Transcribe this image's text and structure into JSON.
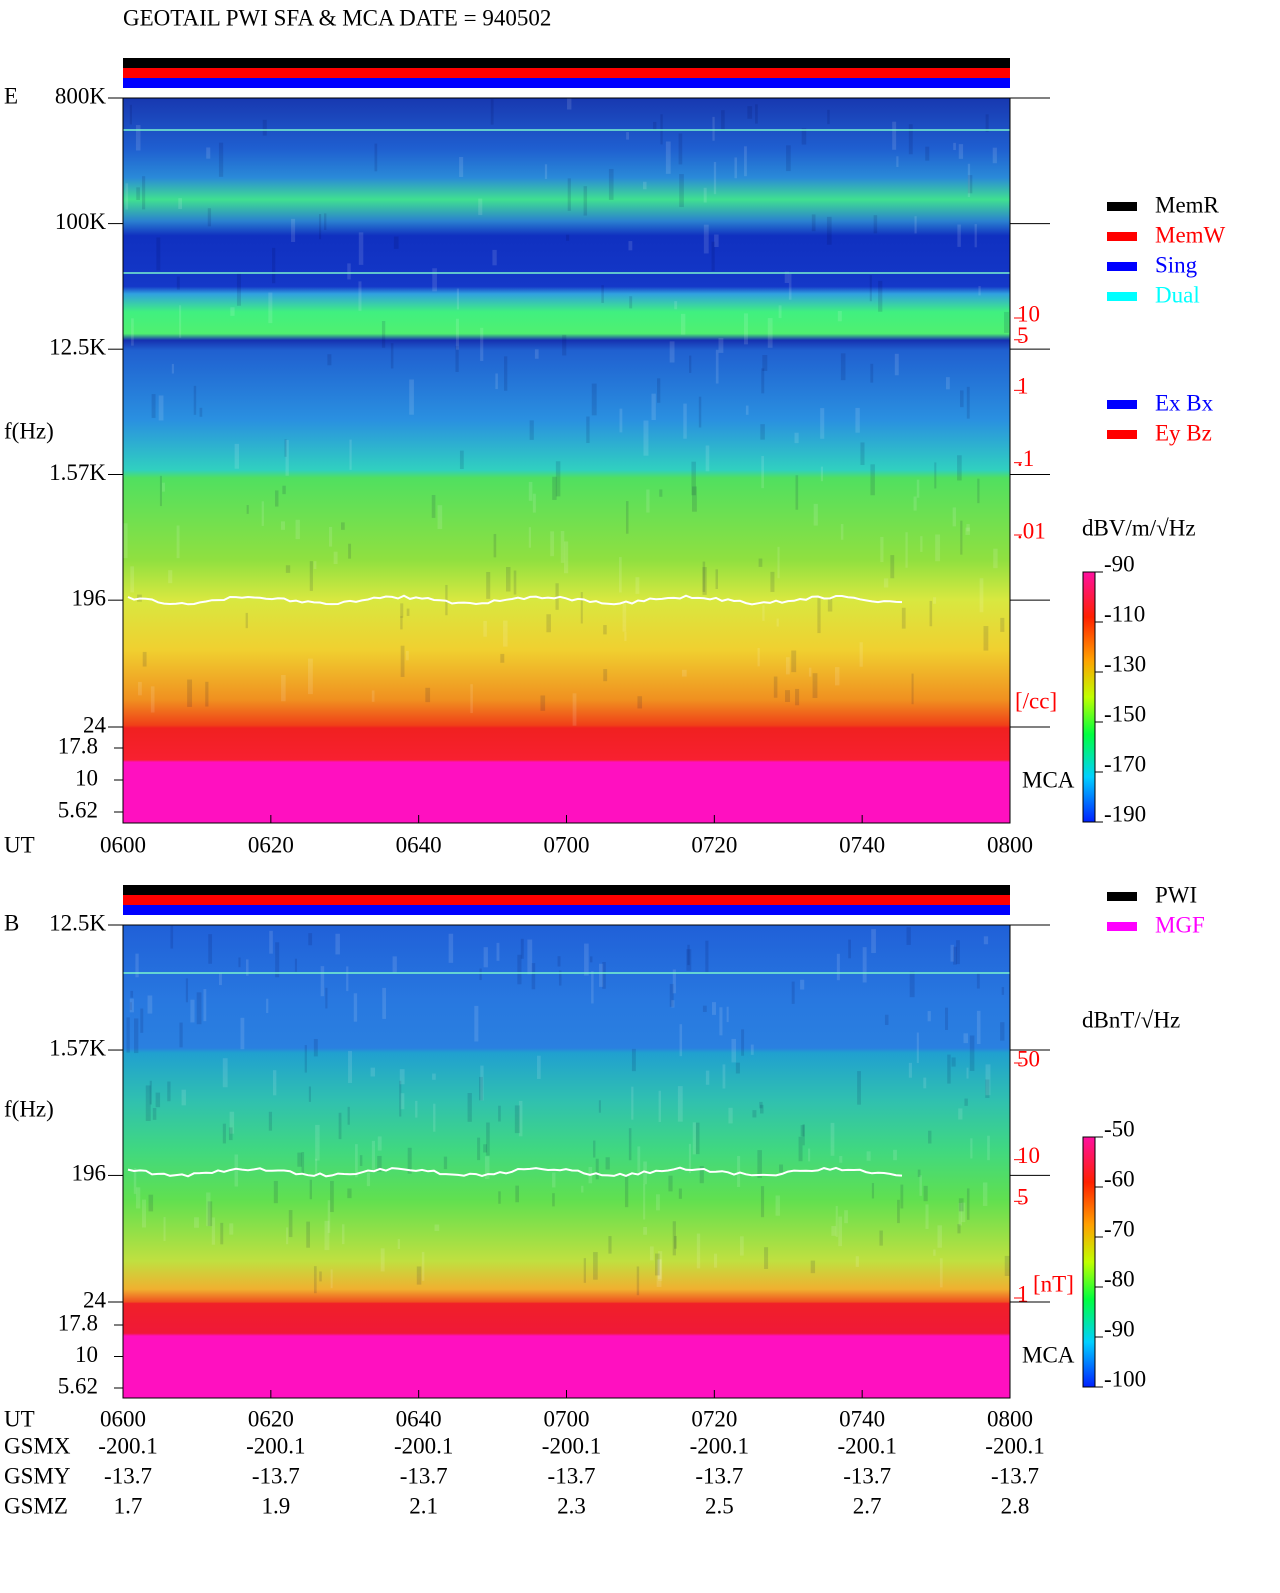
{
  "title": "GEOTAIL  PWI SFA & MCA   DATE = 940502",
  "chart_data": [
    {
      "type": "spectrogram",
      "panel_label": "E",
      "y_label": "f(Hz)",
      "x_label": "UT",
      "yscale": "log",
      "x": [
        "0600",
        "0620",
        "0640",
        "0700",
        "0720",
        "0740",
        "0800"
      ],
      "ylim": [
        24,
        800000
      ],
      "yticks": [
        {
          "value": 800000,
          "label": "800K"
        },
        {
          "value": 100000,
          "label": "100K"
        },
        {
          "value": 12500,
          "label": "12.5K"
        },
        {
          "value": 1570,
          "label": "1.57K"
        },
        196,
        24
      ],
      "mca_label": "MCA",
      "mca_lim": [
        5.62,
        17.8
      ],
      "mca_ticks": [
        17.8,
        10,
        5.62
      ],
      "y2_label": "[/cc]",
      "y2_color": "#ff0000",
      "y2lim": [
        0.01,
        10
      ],
      "y2ticks": [
        10,
        5,
        1,
        {
          "value": 0.1,
          "label": ".1"
        },
        {
          "value": 0.01,
          "label": ".01"
        }
      ],
      "colorbar": {
        "label": "dBV/m/√Hz",
        "lim": [
          -190,
          -90
        ],
        "ticks": [
          -90,
          -110,
          -130,
          -150,
          -170,
          -190
        ]
      },
      "legend": [
        {
          "name": "MemR",
          "color": "#000000"
        },
        {
          "name": "MemW",
          "color": "#ff0000"
        },
        {
          "name": "Sing",
          "color": "#0000ff"
        },
        {
          "name": "Dual",
          "color": "#00ffff"
        }
      ],
      "legend2": [
        {
          "name": "Ex Bx",
          "color": "#0000ff"
        },
        {
          "name": "Ey Bz",
          "color": "#ff0000"
        }
      ]
    },
    {
      "type": "spectrogram",
      "panel_label": "B",
      "y_label": "f(Hz)",
      "x_label": "UT",
      "yscale": "log",
      "x": [
        "0600",
        "0620",
        "0640",
        "0700",
        "0720",
        "0740",
        "0800"
      ],
      "ylim": [
        24,
        12500
      ],
      "yticks": [
        {
          "value": 12500,
          "label": "12.5K"
        },
        {
          "value": 1570,
          "label": "1.57K"
        },
        196,
        24
      ],
      "mca_label": "MCA",
      "mca_lim": [
        5.62,
        17.8
      ],
      "mca_ticks": [
        17.8,
        10,
        5.62
      ],
      "y2_label": "[nT]",
      "y2_color": "#ff0000",
      "y2lim": [
        1,
        50
      ],
      "y2ticks": [
        50,
        10,
        5,
        1
      ],
      "colorbar": {
        "label": "dBnT/√Hz",
        "lim": [
          -100,
          -50
        ],
        "ticks": [
          -50,
          -60,
          -70,
          -80,
          -90,
          -100
        ]
      },
      "legend": [
        {
          "name": "PWI",
          "color": "#000000"
        },
        {
          "name": "MGF",
          "color": "#ff00ff"
        }
      ]
    }
  ],
  "orbit": {
    "rows": [
      {
        "label": "GSMX",
        "values": [
          -200.1,
          -200.1,
          -200.1,
          -200.1,
          -200.1,
          -200.1,
          -200.1
        ]
      },
      {
        "label": "GSMY",
        "values": [
          -13.7,
          -13.7,
          -13.7,
          -13.7,
          -13.7,
          -13.7,
          -13.7
        ]
      },
      {
        "label": "GSMZ",
        "values": [
          1.7,
          1.9,
          2.1,
          2.3,
          2.5,
          2.7,
          2.8
        ]
      }
    ]
  }
}
